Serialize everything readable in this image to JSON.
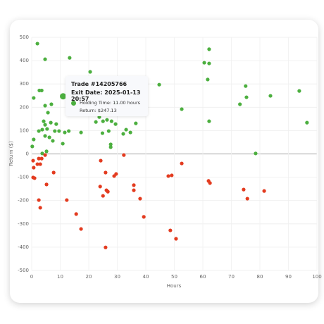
{
  "chart_data": {
    "type": "scatter",
    "x_label": "Hours",
    "y_label": "Return ($)",
    "xlim": [
      0,
      100
    ],
    "xticks": [
      0,
      10,
      20,
      30,
      40,
      50,
      60,
      70,
      80,
      90,
      100
    ],
    "ylim": [
      -500,
      500
    ],
    "yticks": [
      -500,
      -400,
      -300,
      -200,
      -100,
      0,
      100,
      200,
      300,
      400,
      500
    ],
    "grid": true,
    "series": [
      {
        "color": "#4caf3f",
        "x": [
          2,
          4.7,
          13.3,
          20.5,
          2.7,
          3.5,
          0.7,
          6.9,
          4.7,
          5.7,
          4.2,
          4.7,
          3.7,
          2.5,
          5.4,
          6.7,
          8.6,
          8.1,
          9.6,
          11.6,
          13,
          17.3,
          4.7,
          6.2,
          7.4,
          10.9,
          5.2,
          0.7,
          0.2,
          22.5,
          23.7,
          25,
          26.4,
          28,
          29.4,
          27,
          24.8,
          27.7,
          27.7,
          29.4,
          32.1,
          33.1,
          34.6,
          36.5,
          44.7,
          52.6,
          62.2,
          62.2,
          60.5,
          62.2,
          61.7,
          75,
          75.3,
          73,
          83.7,
          93.8,
          96.5,
          78.5,
          3.7,
          11
        ],
        "values": [
          473,
          406,
          412,
          352,
          272,
          272,
          240,
          213,
          207,
          177,
          140,
          125,
          104,
          98,
          107,
          134,
          128,
          98,
          98,
          92,
          98,
          92,
          77,
          71,
          56,
          44,
          11,
          62,
          32,
          137,
          158,
          140,
          146,
          140,
          128,
          98,
          89,
          41,
          29,
          219,
          86,
          104,
          92,
          131,
          297,
          192,
          388,
          140,
          391,
          449,
          319,
          291,
          243,
          213,
          249,
          270,
          134,
          2,
          2,
          247.13
        ]
      },
      {
        "color": "#e33b1f",
        "x": [
          0.5,
          0.7,
          0.5,
          1,
          2,
          3.5,
          4.7,
          2.5,
          3,
          5.2,
          7.7,
          2.5,
          3,
          12.3,
          15.6,
          17.3,
          24.2,
          25.9,
          24,
          25,
          26.2,
          26.7,
          28.9,
          29.6,
          32.3,
          35.8,
          35.8,
          38,
          39.3,
          25.9,
          47.9,
          49.1,
          52.6,
          48.6,
          50.6,
          62,
          62.5,
          74.3,
          75.6,
          81.5
        ],
        "values": [
          -29,
          -59,
          -101,
          -104,
          -44,
          -20,
          -5,
          -20,
          -44,
          -131,
          -80,
          -198,
          -231,
          -198,
          -258,
          -322,
          -29,
          -80,
          -140,
          -180,
          -156,
          -162,
          -95,
          -86,
          -5,
          -134,
          -156,
          -192,
          -270,
          -401,
          -95,
          -92,
          -41,
          -328,
          -364,
          -116,
          -125,
          -153,
          -192,
          -159
        ]
      }
    ],
    "highlight": {
      "series": 0,
      "index": 59
    },
    "tooltip": {
      "title": "Trade #14205766",
      "exit_date": "Exit Date: 2025-01-13 20:57",
      "holding_time": "Holding Time: 11.00 hours",
      "return": "Return: $247.13"
    }
  }
}
